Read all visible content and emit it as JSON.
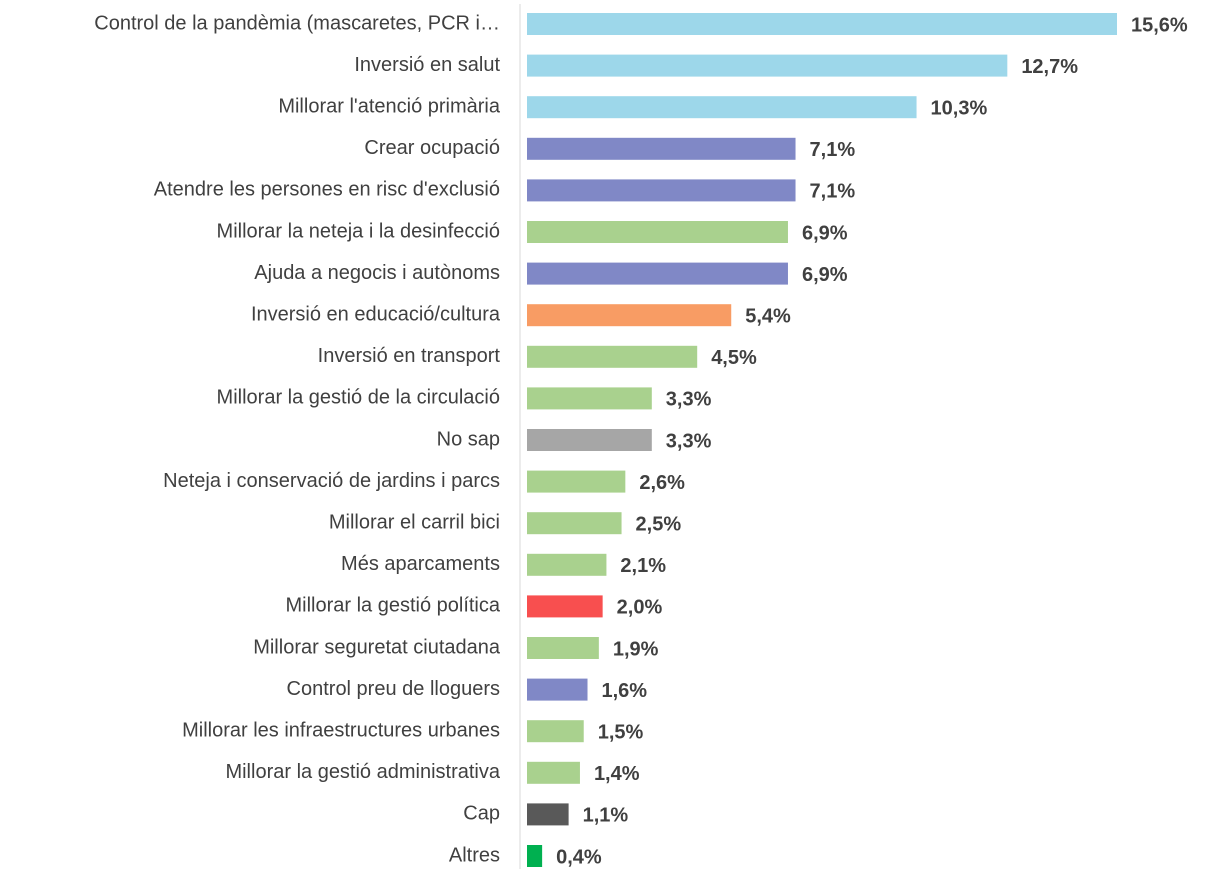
{
  "chart_data": {
    "type": "bar",
    "orientation": "horizontal",
    "categories": [
      "Control de la pandèmia (mascaretes, PCR i…",
      "Inversió en salut",
      "Millorar l'atenció primària",
      "Crear ocupació",
      "Atendre les persones en risc d'exclusió",
      "Millorar la neteja i la desinfecció",
      "Ajuda a negocis i autònoms",
      "Inversió en educació/cultura",
      "Inversió en transport",
      "Millorar la gestió de la circulació",
      "No sap",
      "Neteja i conservació de jardins i parcs",
      "Millorar el carril bici",
      "Més aparcaments",
      "Millorar la gestió política",
      "Millorar seguretat ciutadana",
      "Control preu de lloguers",
      "Millorar les infraestructures urbanes",
      "Millorar la gestió administrativa",
      "Cap",
      "Altres"
    ],
    "values": [
      15.6,
      12.7,
      10.3,
      7.1,
      7.1,
      6.9,
      6.9,
      5.4,
      4.5,
      3.3,
      3.3,
      2.6,
      2.5,
      2.1,
      2.0,
      1.9,
      1.6,
      1.5,
      1.4,
      1.1,
      0.4
    ],
    "value_labels": [
      "15,6%",
      "12,7%",
      "10,3%",
      "7,1%",
      "7,1%",
      "6,9%",
      "6,9%",
      "5,4%",
      "4,5%",
      "3,3%",
      "3,3%",
      "2,6%",
      "2,5%",
      "2,1%",
      "2,0%",
      "1,9%",
      "1,6%",
      "1,5%",
      "1,4%",
      "1,1%",
      "0,4%"
    ],
    "colors": [
      "#9dd7ea",
      "#9dd7ea",
      "#9dd7ea",
      "#8088c6",
      "#8088c6",
      "#a9d18e",
      "#8088c6",
      "#f89c64",
      "#a9d18e",
      "#a9d18e",
      "#a6a6a6",
      "#a9d18e",
      "#a9d18e",
      "#a9d18e",
      "#f84f4f",
      "#a9d18e",
      "#8088c6",
      "#a9d18e",
      "#a9d18e",
      "#595959",
      "#00b050"
    ]
  }
}
